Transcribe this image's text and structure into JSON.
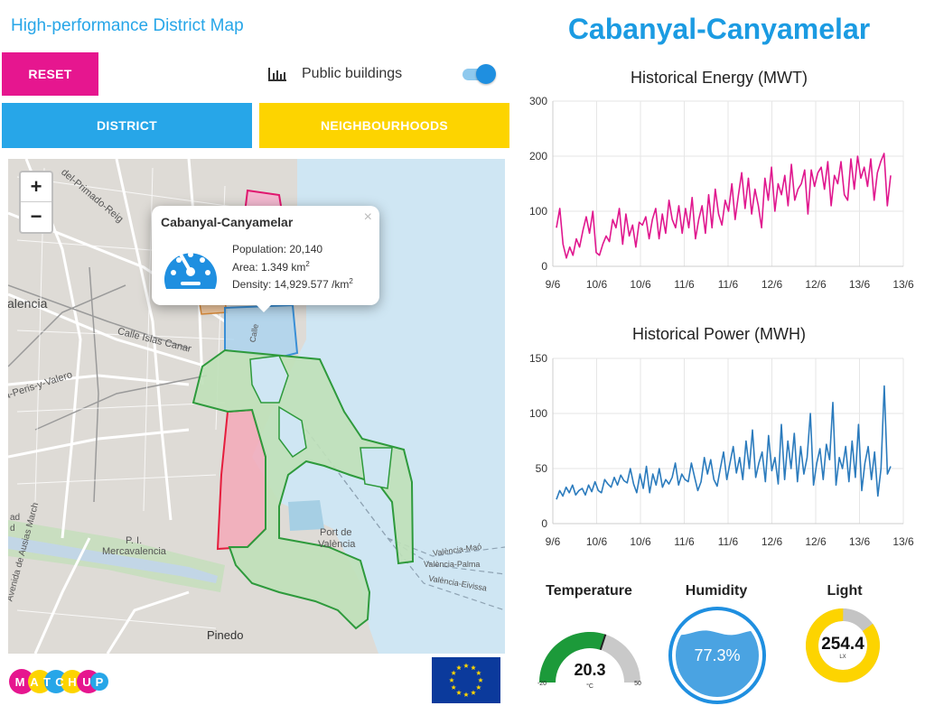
{
  "left_panel": {
    "app_title": "High-performance District Map",
    "reset_label": "RESET",
    "public_buildings": {
      "label": "Public buildings",
      "enabled": true,
      "icon": "bar-chart-icon"
    },
    "district_tab": "DISTRICT",
    "neighbourhoods_tab": "NEIGHBOURHOODS",
    "colors": {
      "reset": "#e6168f",
      "district": "#27a6e8",
      "neighbourhoods": "#fdd400"
    }
  },
  "map": {
    "zoom_in": "+",
    "zoom_out": "−",
    "labels": [
      "alencia",
      "Calle Islas Canar",
      "a-Peris-y-Valero",
      "del-Primado-Reig",
      "Port de",
      "València",
      "P. I.",
      "Mercavalencia",
      "Pinedo",
      "Avenida de Ausias March",
      "ad",
      "d",
      "Calle",
      "València-Maó",
      "València-Palma",
      "València-Eivissa"
    ],
    "popup": {
      "title": "Cabanyal-Canyamelar",
      "close": "×",
      "icon": "gauge-icon",
      "population_label": "Population: 20,140",
      "area_label": "Area: 1.349 km",
      "area_sup": "2",
      "density_label": "Density: 14,929.577 /km",
      "density_sup": "2"
    }
  },
  "logos": {
    "matchup": [
      "M",
      "A",
      "T",
      "C",
      "H",
      "U",
      "P"
    ]
  },
  "right_panel": {
    "district_title": "Cabanyal-Canyamelar",
    "energy_chart_title": "Historical Energy (MWT)",
    "power_chart_title": "Historical Power (MWH)",
    "temperature": {
      "title": "Temperature",
      "value": "20.3",
      "unit": "°C",
      "min": "-20",
      "max": "50",
      "fraction": 0.6
    },
    "humidity": {
      "title": "Humidity",
      "value": "77.3%",
      "fraction": 0.773
    },
    "light": {
      "title": "Light",
      "value": "254.4",
      "unit": "LX",
      "fraction": 0.85
    }
  },
  "chart_data": [
    {
      "type": "line",
      "title": "Historical Energy (MWT)",
      "ylim": [
        0,
        300
      ],
      "yticks": [
        0,
        100,
        200,
        300
      ],
      "xticks": [
        "9/6",
        "10/6",
        "10/6",
        "11/6",
        "11/6",
        "12/6",
        "12/6",
        "13/6",
        "13/6"
      ],
      "color": "#e0178e",
      "grid": true,
      "series": [
        {
          "values": [
            70,
            105,
            40,
            15,
            35,
            20,
            50,
            35,
            65,
            90,
            60,
            100,
            25,
            20,
            40,
            55,
            45,
            85,
            70,
            105,
            40,
            95,
            55,
            75,
            35,
            80,
            75,
            90,
            50,
            85,
            105,
            50,
            95,
            60,
            120,
            85,
            70,
            110,
            60,
            105,
            70,
            125,
            50,
            85,
            110,
            60,
            130,
            70,
            140,
            95,
            75,
            120,
            100,
            150,
            85,
            130,
            170,
            105,
            160,
            95,
            140,
            110,
            70,
            160,
            120,
            180,
            100,
            150,
            130,
            165,
            110,
            185,
            120,
            140,
            150,
            175,
            95,
            175,
            145,
            170,
            180,
            140,
            190,
            110,
            165,
            150,
            190,
            130,
            120,
            195,
            140,
            200,
            160,
            180,
            145,
            195,
            120,
            170,
            190,
            205,
            110,
            165
          ]
        }
      ]
    },
    {
      "type": "line",
      "title": "Historical Power (MWH)",
      "ylim": [
        0,
        150
      ],
      "yticks": [
        0,
        50,
        100,
        150
      ],
      "xticks": [
        "9/6",
        "10/6",
        "10/6",
        "11/6",
        "11/6",
        "12/6",
        "12/6",
        "13/6",
        "13/6"
      ],
      "color": "#2b7bbd",
      "grid": true,
      "series": [
        {
          "values": [
            22,
            30,
            25,
            33,
            28,
            35,
            26,
            30,
            32,
            26,
            35,
            29,
            38,
            30,
            28,
            40,
            36,
            33,
            42,
            35,
            44,
            39,
            37,
            50,
            36,
            28,
            45,
            32,
            52,
            28,
            45,
            35,
            50,
            33,
            40,
            36,
            42,
            55,
            35,
            45,
            40,
            38,
            55,
            42,
            30,
            38,
            60,
            45,
            58,
            40,
            34,
            50,
            65,
            40,
            55,
            70,
            46,
            60,
            40,
            75,
            50,
            85,
            42,
            55,
            65,
            38,
            80,
            48,
            60,
            36,
            90,
            40,
            75,
            50,
            82,
            38,
            70,
            45,
            60,
            100,
            35,
            55,
            68,
            40,
            72,
            58,
            110,
            35,
            60,
            50,
            70,
            38,
            75,
            42,
            90,
            30,
            55,
            70,
            40,
            65,
            25,
            50,
            125,
            45,
            52
          ]
        }
      ]
    }
  ]
}
